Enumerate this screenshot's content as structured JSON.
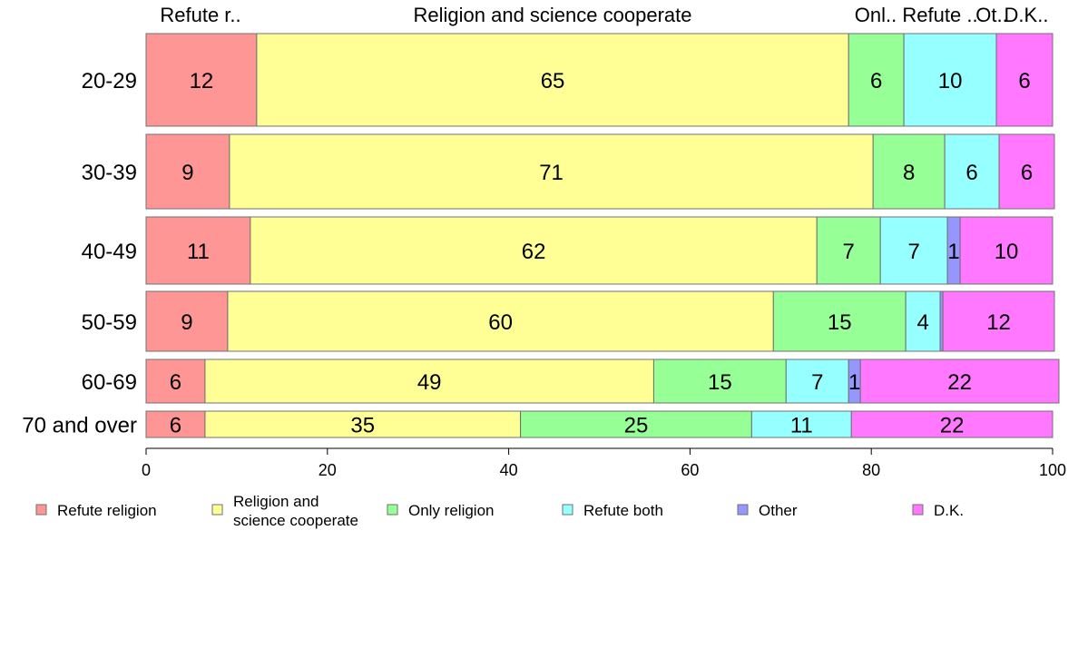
{
  "chart_data": {
    "type": "bar",
    "orientation": "horizontal",
    "stacked": true,
    "title": "",
    "xlabel": "",
    "ylabel": "",
    "xlim": [
      0,
      100
    ],
    "x_ticks": [
      0,
      20,
      40,
      60,
      80,
      100
    ],
    "categories": [
      "20-29",
      "30-39",
      "40-49",
      "50-59",
      "60-69",
      "70 and over"
    ],
    "top_labels": [
      "Refute r..",
      "Religion and science cooperate",
      "Onl..",
      "Refute ..",
      "Ot..",
      "D.K.."
    ],
    "series": [
      {
        "name": "Refute religion",
        "color": "#ff9696",
        "values": [
          12,
          9,
          11,
          9,
          6,
          6
        ]
      },
      {
        "name": "Religion and science cooperate",
        "legend_lines": [
          "Religion and",
          "science cooperate"
        ],
        "color": "#ffff96",
        "values": [
          65,
          71,
          62,
          60,
          49,
          35
        ]
      },
      {
        "name": "Only religion",
        "color": "#96ff96",
        "values": [
          6,
          8,
          7,
          15,
          15,
          25
        ]
      },
      {
        "name": "Refute both",
        "color": "#96ffff",
        "values": [
          10,
          6,
          7,
          4,
          7,
          11
        ]
      },
      {
        "name": "Other",
        "color": "#9696ff",
        "values": [
          0,
          0,
          1,
          0,
          1,
          0
        ]
      },
      {
        "name": "D.K.",
        "color": "#ff78ff",
        "values": [
          6,
          6,
          10,
          12,
          22,
          22
        ]
      }
    ],
    "value_labels": [
      [
        "12",
        "65",
        "6",
        "10",
        "",
        "6"
      ],
      [
        "9",
        "71",
        "8",
        "6",
        "",
        "6"
      ],
      [
        "11",
        "62",
        "7",
        "7",
        "1",
        "10"
      ],
      [
        "9",
        "60",
        "15",
        "4",
        "",
        "12"
      ],
      [
        "6",
        "49",
        "15",
        "7",
        "1",
        "22"
      ],
      [
        "6",
        "35",
        "25",
        "11",
        "",
        "22"
      ]
    ],
    "raw_widths": [
      [
        12.2,
        65.3,
        6.1,
        10.2,
        0,
        6.2
      ],
      [
        9.2,
        71.0,
        7.9,
        6.0,
        0,
        6.1
      ],
      [
        11.5,
        62.5,
        7.0,
        7.4,
        1.4,
        10.2
      ],
      [
        9.0,
        60.2,
        14.6,
        3.8,
        0.3,
        12.3
      ],
      [
        6.5,
        49.5,
        14.6,
        6.9,
        1.3,
        21.9
      ],
      [
        6.5,
        34.8,
        25.5,
        11.0,
        0,
        22.2
      ]
    ],
    "legend_placement": "bottom",
    "grid": false
  }
}
